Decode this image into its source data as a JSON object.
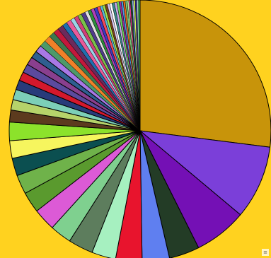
{
  "chart_data": {
    "type": "pie",
    "title": "",
    "start_angle_deg": 0,
    "direction": "clockwise",
    "slice_outline": "#000000",
    "slices": [
      {
        "value": 27.3,
        "color": "#c8940a"
      },
      {
        "value": 9.2,
        "color": "#7b3fd9"
      },
      {
        "value": 6.6,
        "color": "#7410b5"
      },
      {
        "value": 3.8,
        "color": "#233c26"
      },
      {
        "value": 3.4,
        "color": "#5f7ff0"
      },
      {
        "value": 3.3,
        "color": "#e8142d"
      },
      {
        "value": 3.0,
        "color": "#a6f0c0"
      },
      {
        "value": 3.1,
        "color": "#5d7d5d"
      },
      {
        "value": 2.7,
        "color": "#7fd08f"
      },
      {
        "value": 2.8,
        "color": "#dc5ad6"
      },
      {
        "value": 2.6,
        "color": "#5a9a2e"
      },
      {
        "value": 2.4,
        "color": "#6fb24a"
      },
      {
        "value": 2.2,
        "color": "#0b4f50"
      },
      {
        "value": 2.2,
        "color": "#f6f55e"
      },
      {
        "value": 2.3,
        "color": "#8ce22b"
      },
      {
        "value": 1.5,
        "color": "#5c3b1e"
      },
      {
        "value": 1.3,
        "color": "#b6d36a"
      },
      {
        "value": 1.3,
        "color": "#7ccfb8"
      },
      {
        "value": 1.2,
        "color": "#283b7a"
      },
      {
        "value": 1.1,
        "color": "#d4182c"
      },
      {
        "value": 1.1,
        "color": "#5b4a9e"
      },
      {
        "value": 1.0,
        "color": "#8a3f8e"
      },
      {
        "value": 0.9,
        "color": "#2f5f90"
      },
      {
        "value": 0.9,
        "color": "#a878e6"
      },
      {
        "value": 0.8,
        "color": "#4d9a6a"
      },
      {
        "value": 0.8,
        "color": "#f08028"
      },
      {
        "value": 0.7,
        "color": "#3c7a4e"
      },
      {
        "value": 0.7,
        "color": "#c2183c"
      },
      {
        "value": 0.7,
        "color": "#6b2a5c"
      },
      {
        "value": 0.6,
        "color": "#1f6faf"
      },
      {
        "value": 0.6,
        "color": "#e85a9a"
      },
      {
        "value": 0.5,
        "color": "#9ad3e8"
      },
      {
        "value": 0.5,
        "color": "#d13f7a"
      },
      {
        "value": 0.5,
        "color": "#7ac14a"
      },
      {
        "value": 0.5,
        "color": "#503c8c"
      },
      {
        "value": 0.4,
        "color": "#e0e0e0"
      },
      {
        "value": 0.4,
        "color": "#2c8c3c"
      },
      {
        "value": 0.4,
        "color": "#b040b8"
      },
      {
        "value": 0.4,
        "color": "#3a3ac0"
      },
      {
        "value": 0.4,
        "color": "#f24a5a"
      },
      {
        "value": 0.3,
        "color": "#5ab8d8"
      },
      {
        "value": 0.3,
        "color": "#a0e04a"
      },
      {
        "value": 0.3,
        "color": "#784018"
      },
      {
        "value": 0.3,
        "color": "#d8c8f0"
      },
      {
        "value": 0.3,
        "color": "#ffffff"
      },
      {
        "value": 0.3,
        "color": "#3a8a8a"
      },
      {
        "value": 0.3,
        "color": "#c8a8e8"
      },
      {
        "value": 0.3,
        "color": "#6ad05a"
      },
      {
        "value": 0.25,
        "color": "#9a2a9a"
      },
      {
        "value": 0.25,
        "color": "#4a9ae0"
      },
      {
        "value": 0.25,
        "color": "#e86a1a"
      },
      {
        "value": 0.25,
        "color": "#78c878"
      },
      {
        "value": 0.2,
        "color": "#b8e8a8"
      },
      {
        "value": 0.2,
        "color": "#e03a8a"
      },
      {
        "value": 0.2,
        "color": "#1a5a3a"
      },
      {
        "value": 0.2,
        "color": "#9ab8f8"
      },
      {
        "value": 0.2,
        "color": "#d8f858"
      },
      {
        "value": 0.2,
        "color": "#4a3aa8"
      },
      {
        "value": 0.2,
        "color": "#a8d8c8"
      },
      {
        "value": 0.2,
        "color": "#2a9a2a"
      }
    ]
  }
}
